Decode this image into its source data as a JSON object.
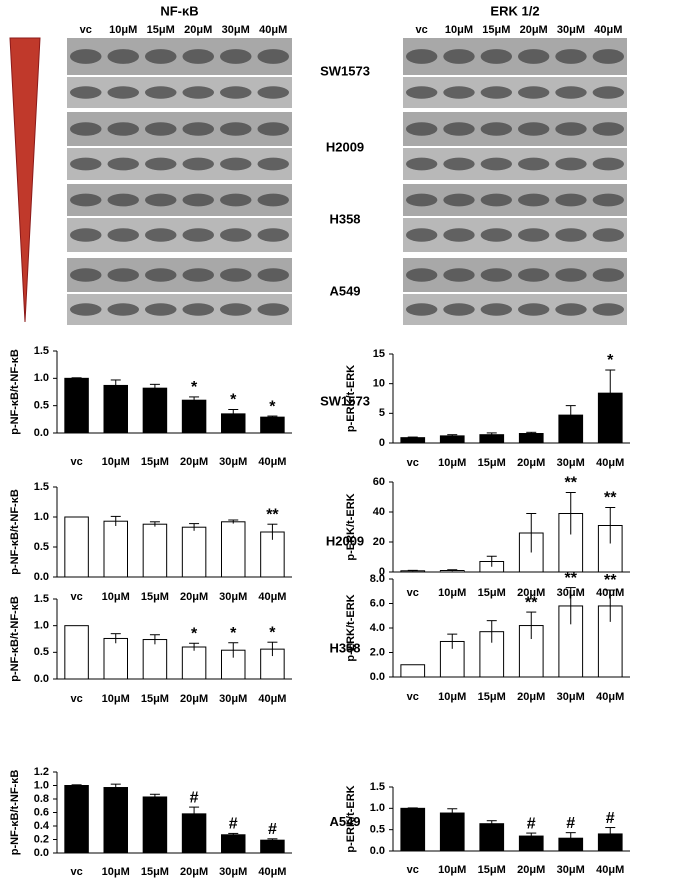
{
  "blots": {
    "panels": [
      {
        "title": "NF-κB",
        "lanes": [
          "vc",
          "10μM",
          "15μM",
          "20μM",
          "30μM",
          "40μM"
        ]
      },
      {
        "title": "ERK 1/2",
        "lanes": [
          "vc",
          "10μM",
          "15μM",
          "20μM",
          "30μM",
          "40μM"
        ]
      }
    ],
    "cell_lines": [
      "SW1573",
      "H2009",
      "H358",
      "A549"
    ]
  },
  "chart_data": [
    {
      "type": "bar",
      "title": "SW1573",
      "y_label": "p-NF-κB/t-NF-κB",
      "color": "#000000",
      "categories": [
        "vc",
        "10μM",
        "15μM",
        "20μM",
        "30μM",
        "40μM"
      ],
      "values": [
        1.0,
        0.87,
        0.82,
        0.6,
        0.35,
        0.29
      ],
      "errors": [
        0.01,
        0.1,
        0.07,
        0.06,
        0.08,
        0.02
      ],
      "annotations": [
        {
          "index": 3,
          "text": "*"
        },
        {
          "index": 4,
          "text": "*"
        },
        {
          "index": 5,
          "text": "*"
        }
      ],
      "ylim": [
        0,
        1.5
      ],
      "yticks": [
        {
          "value": 0,
          "label": "0.0"
        },
        0.5,
        {
          "value": 1,
          "label": "1.0"
        },
        1.5
      ]
    },
    {
      "type": "bar",
      "y_label": "p-ERK/t-ERK",
      "color": "#000000",
      "categories": [
        "vc",
        "10μM",
        "15μM",
        "20μM",
        "30μM",
        "40μM"
      ],
      "values": [
        0.9,
        1.2,
        1.4,
        1.6,
        4.7,
        8.4
      ],
      "errors": [
        0.1,
        0.2,
        0.3,
        0.2,
        1.6,
        3.9
      ],
      "annotations": [
        {
          "index": 5,
          "text": "*"
        }
      ],
      "ylim": [
        0,
        15
      ],
      "yticks": [
        0,
        5,
        10,
        15
      ]
    },
    {
      "type": "bar",
      "title": "H2009",
      "y_label": "p-NF-κB/t-NF-κB",
      "color": "#ffffff",
      "categories": [
        "vc",
        "10μM",
        "15μM",
        "20μM",
        "30μM",
        "40μM"
      ],
      "values": [
        1.0,
        0.93,
        0.88,
        0.83,
        0.92,
        0.75
      ],
      "errors": [
        0,
        0.08,
        0.04,
        0.06,
        0.03,
        0.13
      ],
      "annotations": [
        {
          "index": 5,
          "text": "**"
        }
      ],
      "ylim": [
        0,
        1.5
      ],
      "yticks": [
        {
          "value": 0,
          "label": "0.0"
        },
        0.5,
        {
          "value": 1,
          "label": "1.0"
        },
        1.5
      ]
    },
    {
      "type": "bar",
      "y_label": "p-ERK/t-ERK",
      "color": "#ffffff",
      "categories": [
        "vc",
        "10μM",
        "15μM",
        "20μM",
        "30μM",
        "40μM"
      ],
      "values": [
        0.8,
        1,
        7,
        26,
        39,
        31
      ],
      "errors": [
        0.3,
        0.5,
        3.5,
        13,
        14,
        12
      ],
      "annotations": [
        {
          "index": 4,
          "text": "**"
        },
        {
          "index": 5,
          "text": "**"
        }
      ],
      "ylim": [
        0,
        60
      ],
      "yticks": [
        0,
        20,
        40,
        60
      ]
    },
    {
      "type": "bar",
      "title": "H358",
      "y_label": "p-NF-κB/t-NF-κB",
      "color": "#ffffff",
      "categories": [
        "vc",
        "10μM",
        "15μM",
        "20μM",
        "30μM",
        "40μM"
      ],
      "values": [
        1.0,
        0.76,
        0.74,
        0.6,
        0.54,
        0.56
      ],
      "errors": [
        0,
        0.09,
        0.09,
        0.07,
        0.14,
        0.13
      ],
      "annotations": [
        {
          "index": 3,
          "text": "*"
        },
        {
          "index": 4,
          "text": "*"
        },
        {
          "index": 5,
          "text": "*"
        }
      ],
      "ylim": [
        0,
        1.5
      ],
      "yticks": [
        {
          "value": 0,
          "label": "0.0"
        },
        0.5,
        {
          "value": 1,
          "label": "1.0"
        },
        1.5
      ]
    },
    {
      "type": "bar",
      "y_label": "p-ERK/t-ERK",
      "color": "#ffffff",
      "categories": [
        "vc",
        "10μM",
        "15μM",
        "20μM",
        "30μM",
        "40μM"
      ],
      "values": [
        1.0,
        2.9,
        3.7,
        4.2,
        5.8,
        5.8
      ],
      "errors": [
        0,
        0.6,
        0.9,
        1.1,
        1.5,
        1.3
      ],
      "annotations": [
        {
          "index": 3,
          "text": "**"
        },
        {
          "index": 4,
          "text": "**"
        },
        {
          "index": 5,
          "text": "**"
        }
      ],
      "ylim": [
        0,
        8
      ],
      "yticks": [
        {
          "value": 0,
          "label": "0.0"
        },
        {
          "value": 2,
          "label": "2.0"
        },
        {
          "value": 4,
          "label": "4.0"
        },
        {
          "value": 6,
          "label": "6.0"
        },
        {
          "value": 8,
          "label": "8.0"
        }
      ]
    },
    {
      "type": "bar",
      "title": "A549",
      "y_label": "p-NF-κB/t-NF-κB",
      "color": "#000000",
      "categories": [
        "vc",
        "10μM",
        "15μM",
        "20μM",
        "30μM",
        "40μM"
      ],
      "values": [
        1.0,
        0.97,
        0.83,
        0.58,
        0.27,
        0.19
      ],
      "errors": [
        0.01,
        0.05,
        0.04,
        0.1,
        0.02,
        0.02
      ],
      "annotations": [
        {
          "index": 3,
          "text": "#"
        },
        {
          "index": 4,
          "text": "#"
        },
        {
          "index": 5,
          "text": "#"
        }
      ],
      "ylim": [
        0,
        1.2
      ],
      "yticks": [
        {
          "value": 0,
          "label": "0.0"
        },
        0.2,
        0.4,
        0.6,
        0.8,
        {
          "value": 1,
          "label": "1.0"
        },
        1.2
      ]
    },
    {
      "type": "bar",
      "y_label": "p-ERK/t-ERK",
      "color": "#000000",
      "categories": [
        "vc",
        "10μM",
        "15μM",
        "20μM",
        "30μM",
        "40μM"
      ],
      "values": [
        1.0,
        0.89,
        0.64,
        0.35,
        0.3,
        0.4
      ],
      "errors": [
        0.01,
        0.1,
        0.07,
        0.07,
        0.13,
        0.15
      ],
      "annotations": [
        {
          "index": 3,
          "text": "#"
        },
        {
          "index": 4,
          "text": "#"
        },
        {
          "index": 5,
          "text": "#"
        }
      ],
      "ylim": [
        0,
        1.5
      ],
      "yticks": [
        {
          "value": 0,
          "label": "0.0"
        },
        0.5,
        {
          "value": 1,
          "label": "1.0"
        },
        1.5
      ]
    }
  ]
}
